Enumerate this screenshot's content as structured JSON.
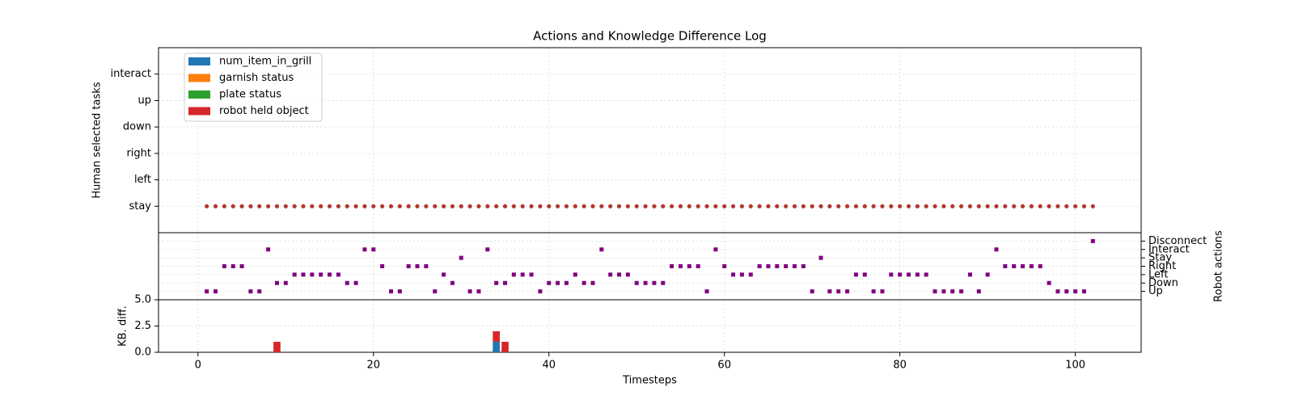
{
  "chart_data": [
    {
      "type": "scatter",
      "title": "Actions and Knowledge Difference Log",
      "ylabel": "Human selected tasks",
      "ylim": [
        -1,
        6
      ],
      "yticks": [
        {
          "value": 0,
          "label": "stay"
        },
        {
          "value": 1,
          "label": "left"
        },
        {
          "value": 2,
          "label": "right"
        },
        {
          "value": 3,
          "label": "down"
        },
        {
          "value": 4,
          "label": "up"
        },
        {
          "value": 5,
          "label": "interact"
        }
      ],
      "grid": true,
      "color": "#b03a2e",
      "x": [
        1,
        2,
        3,
        4,
        5,
        6,
        7,
        8,
        9,
        10,
        11,
        12,
        13,
        14,
        15,
        16,
        17,
        18,
        19,
        20,
        21,
        22,
        23,
        24,
        25,
        26,
        27,
        28,
        29,
        30,
        31,
        32,
        33,
        34,
        35,
        36,
        37,
        38,
        39,
        40,
        41,
        42,
        43,
        44,
        45,
        46,
        47,
        48,
        49,
        50,
        51,
        52,
        53,
        54,
        55,
        56,
        57,
        58,
        59,
        60,
        61,
        62,
        63,
        64,
        65,
        66,
        67,
        68,
        69,
        70,
        71,
        72,
        73,
        74,
        75,
        76,
        77,
        78,
        79,
        80,
        81,
        82,
        83,
        84,
        85,
        86,
        87,
        88,
        89,
        90,
        91,
        92,
        93,
        94,
        95,
        96,
        97,
        98,
        99,
        100,
        101,
        102
      ],
      "values": [
        0,
        0,
        0,
        0,
        0,
        0,
        0,
        0,
        0,
        0,
        0,
        0,
        0,
        0,
        0,
        0,
        0,
        0,
        0,
        0,
        0,
        0,
        0,
        0,
        0,
        0,
        0,
        0,
        0,
        0,
        0,
        0,
        0,
        0,
        0,
        0,
        0,
        0,
        0,
        0,
        0,
        0,
        0,
        0,
        0,
        0,
        0,
        0,
        0,
        0,
        0,
        0,
        0,
        0,
        0,
        0,
        0,
        0,
        0,
        0,
        0,
        0,
        0,
        0,
        0,
        0,
        0,
        0,
        0,
        0,
        0,
        0,
        0,
        0,
        0,
        0,
        0,
        0,
        0,
        0,
        0,
        0,
        0,
        0,
        0,
        0,
        0,
        0,
        0,
        0,
        0,
        0,
        0,
        0,
        0,
        0,
        0,
        0,
        0,
        0,
        0,
        0
      ]
    },
    {
      "type": "scatter",
      "ylabel": "Robot actions",
      "y_axis_side": "right",
      "ylim": [
        -1,
        7
      ],
      "yticks": [
        {
          "value": 0,
          "label": "Up"
        },
        {
          "value": 1,
          "label": "Down"
        },
        {
          "value": 2,
          "label": "Left"
        },
        {
          "value": 3,
          "label": "Right"
        },
        {
          "value": 4,
          "label": "Stay"
        },
        {
          "value": 5,
          "label": "Interact"
        },
        {
          "value": 6,
          "label": "Disconnect"
        }
      ],
      "grid": true,
      "color": "#800080",
      "marker": "square",
      "x": [
        1,
        2,
        3,
        4,
        5,
        6,
        7,
        8,
        9,
        10,
        11,
        12,
        13,
        14,
        15,
        16,
        17,
        18,
        19,
        20,
        21,
        22,
        23,
        24,
        25,
        26,
        27,
        28,
        29,
        30,
        31,
        32,
        33,
        34,
        35,
        36,
        37,
        38,
        39,
        40,
        41,
        42,
        43,
        44,
        45,
        46,
        47,
        48,
        49,
        50,
        51,
        52,
        53,
        54,
        55,
        56,
        57,
        58,
        59,
        60,
        61,
        62,
        63,
        64,
        65,
        66,
        67,
        68,
        69,
        70,
        71,
        72,
        73,
        74,
        75,
        76,
        77,
        78,
        79,
        80,
        81,
        82,
        83,
        84,
        85,
        86,
        87,
        88,
        89,
        90,
        91,
        92,
        93,
        94,
        95,
        96,
        97,
        98,
        99,
        100,
        101,
        102
      ],
      "values": [
        0,
        0,
        3,
        3,
        3,
        0,
        0,
        5,
        1,
        1,
        2,
        2,
        2,
        2,
        2,
        2,
        1,
        1,
        5,
        5,
        3,
        0,
        0,
        3,
        3,
        3,
        0,
        2,
        1,
        4,
        0,
        0,
        5,
        1,
        1,
        2,
        2,
        2,
        0,
        1,
        1,
        1,
        2,
        1,
        1,
        5,
        2,
        2,
        2,
        1,
        1,
        1,
        1,
        3,
        3,
        3,
        3,
        0,
        5,
        3,
        2,
        2,
        2,
        3,
        3,
        3,
        3,
        3,
        3,
        0,
        4,
        0,
        0,
        0,
        2,
        2,
        0,
        0,
        2,
        2,
        2,
        2,
        2,
        0,
        0,
        0,
        0,
        2,
        0,
        2,
        5,
        3,
        3,
        3,
        3,
        3,
        1,
        0,
        0,
        0,
        0,
        6
      ]
    },
    {
      "type": "bar",
      "stacked": true,
      "ylabel": "KB. diff.",
      "xlabel": "Timesteps",
      "xlim": [
        -4.5,
        107.5
      ],
      "xticks": [
        0,
        20,
        40,
        60,
        80,
        100
      ],
      "ylim": [
        0,
        5
      ],
      "yticks": [
        {
          "value": 0,
          "label": "0.0"
        },
        {
          "value": 2.5,
          "label": "2.5"
        },
        {
          "value": 5,
          "label": "5.0"
        }
      ],
      "grid": true,
      "legend": "upper left",
      "x": [
        9,
        34,
        35
      ],
      "series": [
        {
          "name": "num_item_in_grill",
          "color": "#1f77b4",
          "values": [
            0,
            1,
            0
          ]
        },
        {
          "name": "garnish status",
          "color": "#ff7f0e",
          "values": [
            0,
            0,
            0
          ]
        },
        {
          "name": "plate status",
          "color": "#2ca02c",
          "values": [
            0,
            0,
            0
          ]
        },
        {
          "name": "robot held object",
          "color": "#d62728",
          "values": [
            1,
            1,
            1
          ]
        }
      ]
    }
  ]
}
